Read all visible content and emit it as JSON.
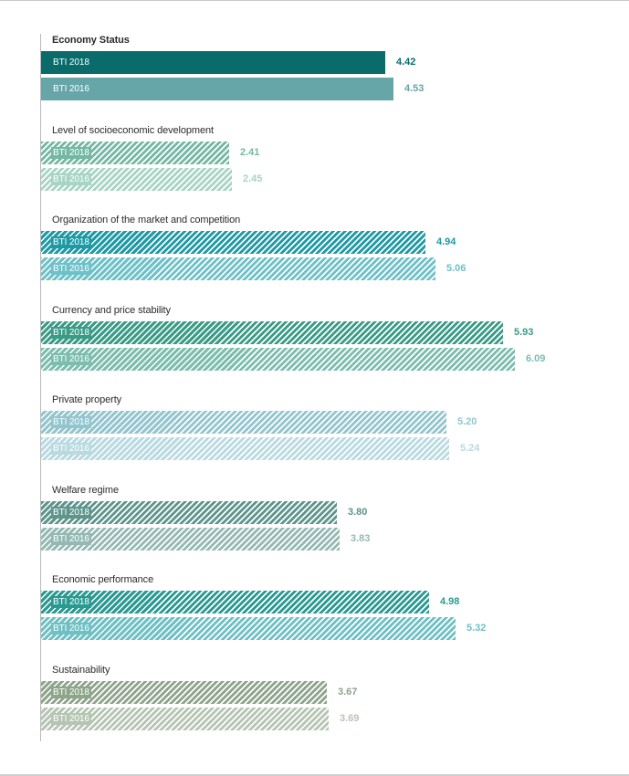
{
  "chart_data": {
    "type": "bar",
    "orientation": "horizontal",
    "xlim": [
      0,
      7.5
    ],
    "series_names": [
      "BTI 2018",
      "BTI 2016"
    ],
    "groups": [
      {
        "title": "Economy Status",
        "values": [
          4.42,
          4.53
        ],
        "labels": [
          "4.42",
          "4.53"
        ],
        "color": "#0a6b6b",
        "color2016": "#66a6a8",
        "hatched": false,
        "bold": true
      },
      {
        "title": "Level of socioeconomic development",
        "values": [
          2.41,
          2.45
        ],
        "labels": [
          "2.41",
          "2.45"
        ],
        "color": "#74b8a3",
        "color2016": "#a7d4c5",
        "hatched": true,
        "bold": false
      },
      {
        "title": "Organization of the market and competition",
        "values": [
          4.94,
          5.06
        ],
        "labels": [
          "4.94",
          "5.06"
        ],
        "color": "#1f9aa5",
        "color2016": "#6ec1c8",
        "hatched": true,
        "bold": false
      },
      {
        "title": "Currency and price stability",
        "values": [
          5.93,
          6.09
        ],
        "labels": [
          "5.93",
          "6.09"
        ],
        "color": "#3a9b86",
        "color2016": "#7dbdae",
        "hatched": true,
        "bold": false
      },
      {
        "title": "Private property",
        "values": [
          5.2,
          5.24
        ],
        "labels": [
          "5.20",
          "5.24"
        ],
        "color": "#93c5cf",
        "color2016": "#b9dae1",
        "hatched": true,
        "bold": false
      },
      {
        "title": "Welfare regime",
        "values": [
          3.8,
          3.83
        ],
        "labels": [
          "3.80",
          "3.83"
        ],
        "color": "#5e958d",
        "color2016": "#94b9b4",
        "hatched": true,
        "bold": false
      },
      {
        "title": "Economic performance",
        "values": [
          4.98,
          5.32
        ],
        "labels": [
          "4.98",
          "5.32"
        ],
        "color": "#2a9a91",
        "color2016": "#6fc0c4",
        "hatched": true,
        "bold": false
      },
      {
        "title": "Sustainability",
        "values": [
          3.67,
          3.69
        ],
        "labels": [
          "3.67",
          "3.69"
        ],
        "color": "#8ea48b",
        "color2016": "#b6c5b3",
        "hatched": true,
        "bold": false
      }
    ]
  }
}
